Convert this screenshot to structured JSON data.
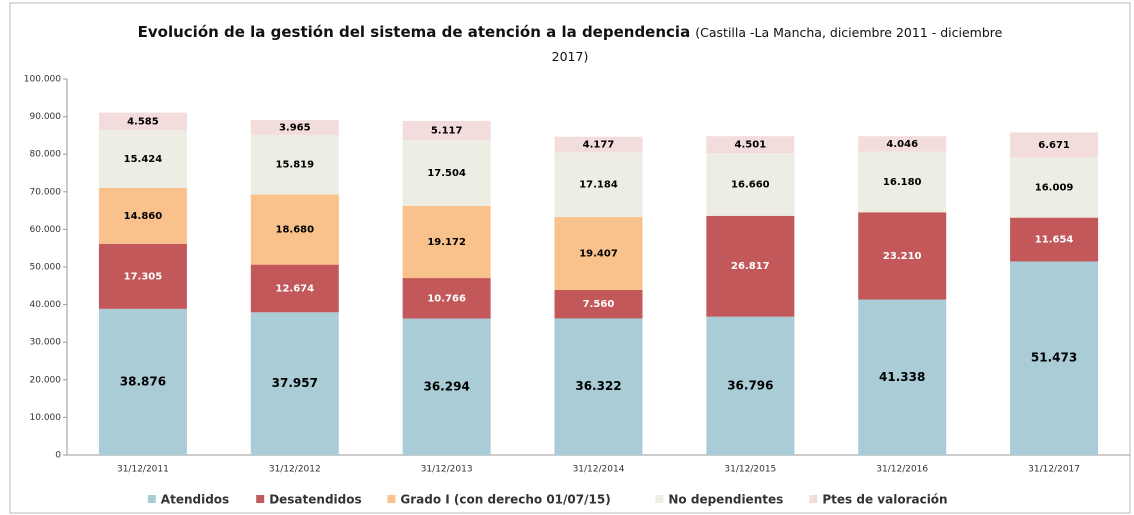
{
  "chart_data": {
    "type": "stacked_bar",
    "title": "Evolución de la gestión del sistema de atención a la dependencia",
    "subtitle": "(Castilla -La Mancha, diciembre 2011 - diciembre 2017)",
    "categories": [
      "31/12/2011",
      "31/12/2012",
      "31/12/2013",
      "31/12/2014",
      "31/12/2015",
      "31/12/2016",
      "31/12/2017"
    ],
    "series": [
      {
        "name": "Atendidos",
        "color": "#a9ccd7",
        "label_color": "#000000",
        "values": [
          38876,
          37957,
          36294,
          36322,
          36796,
          41338,
          51473
        ],
        "value_labels": [
          "38.876",
          "37.957",
          "36.294",
          "36.322",
          "36.796",
          "41.338",
          "51.473"
        ]
      },
      {
        "name": "Desatendidos",
        "color": "#c2585a",
        "label_color": "#ffffff",
        "values": [
          17305,
          12674,
          10766,
          7560,
          26817,
          23210,
          11654
        ],
        "value_labels": [
          "17.305",
          "12.674",
          "10.766",
          "7.560",
          "26.817",
          "23.210",
          "11.654"
        ]
      },
      {
        "name": "Grado I (con derecho 01/07/15)",
        "color": "#f9c18c",
        "label_color": "#000000",
        "values": [
          14860,
          18680,
          19172,
          19407,
          null,
          null,
          null
        ],
        "value_labels": [
          "14.860",
          "18.680",
          "19.172",
          "19.407",
          null,
          null,
          null
        ]
      },
      {
        "name": "No dependientes",
        "color": "#eeede3",
        "label_color": "#000000",
        "values": [
          15424,
          15819,
          17504,
          17184,
          16660,
          16180,
          16009
        ],
        "value_labels": [
          "15.424",
          "15.819",
          "17.504",
          "17.184",
          "16.660",
          "16.180",
          "16.009"
        ]
      },
      {
        "name": "Ptes de valoración",
        "color": "#f3dcdc",
        "label_color": "#000000",
        "values": [
          4585,
          3965,
          5117,
          4177,
          4501,
          4046,
          6671
        ],
        "value_labels": [
          "4.585",
          "3.965",
          "5.117",
          "4.177",
          "4.501",
          "4.046",
          "6.671"
        ]
      }
    ],
    "ylim": [
      0,
      100000
    ],
    "yticks": [
      0,
      {
        "value": 10000,
        "label": "10.000"
      },
      {
        "value": 20000,
        "label": "20.000"
      },
      {
        "value": 30000,
        "label": "30.000"
      },
      {
        "value": 40000,
        "label": "40.000"
      },
      {
        "value": 50000,
        "label": "50.000"
      },
      {
        "value": 60000,
        "label": "60.000"
      },
      {
        "value": 70000,
        "label": "70.000"
      },
      {
        "value": 80000,
        "label": "80.000"
      },
      {
        "value": 90000,
        "label": "90.000"
      },
      {
        "value": 100000,
        "label": "100.000"
      }
    ],
    "grid": false,
    "legend": "bottom"
  }
}
